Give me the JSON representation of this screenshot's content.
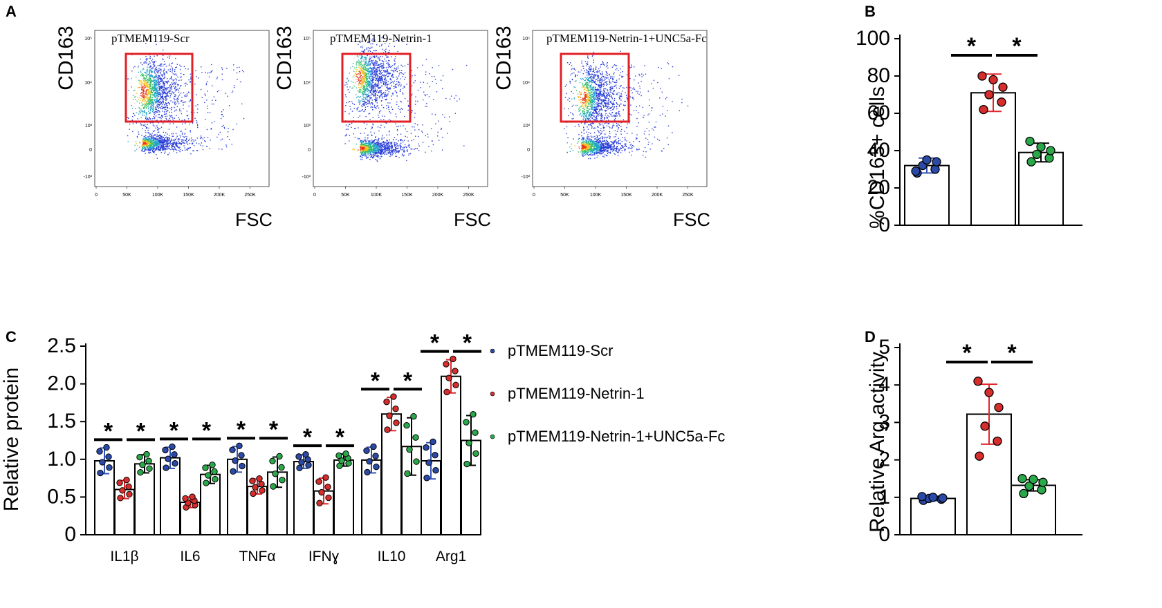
{
  "panels": {
    "A": "A",
    "B": "B",
    "C": "C",
    "D": "D"
  },
  "colors": {
    "scr": "#2b4aa8",
    "netrin": "#d62d2d",
    "unc": "#2aa84a",
    "errScr": "#3355bb",
    "errNetrin": "#e0262a",
    "gate": "#e11f26"
  },
  "chart_data": [
    {
      "panel": "A",
      "type": "scatter",
      "subtype": "flow-cytometry density plots",
      "xlabel": "FSC",
      "ylabel": "CD163",
      "x_ticks": [
        "0",
        "50K",
        "100K",
        "150K",
        "200K",
        "250K"
      ],
      "y_ticks": [
        "10⁵",
        "10⁴",
        "10³",
        "0",
        "-10³"
      ],
      "plots": [
        {
          "title": "pTMEM119-Scr"
        },
        {
          "title": "pTMEM119-Netrin-1"
        },
        {
          "title": "pTMEM119-Netrin-1+UNC5a-Fc"
        }
      ]
    },
    {
      "panel": "B",
      "type": "bar",
      "ylabel": "%CD163+ cells",
      "ylim": [
        0,
        100
      ],
      "yticks": [
        0,
        20,
        40,
        60,
        80,
        100
      ],
      "groups": [
        "pTMEM119-Scr",
        "pTMEM119-Netrin-1",
        "pTMEM119-Netrin-1+UNC5a-Fc"
      ],
      "means": [
        32,
        71,
        39
      ],
      "errors": [
        4,
        10,
        5
      ],
      "points": [
        [
          28,
          30,
          32,
          34,
          35,
          29
        ],
        [
          62,
          66,
          70,
          74,
          78,
          80
        ],
        [
          34,
          36,
          38,
          40,
          42,
          45
        ]
      ],
      "significance": [
        "*",
        "*"
      ]
    },
    {
      "panel": "C",
      "type": "bar",
      "ylabel": "Relative protein",
      "ylim": [
        0,
        2.5
      ],
      "yticks": [
        "0",
        "0.5",
        "1.0",
        "1.5",
        "2.0",
        "2.5"
      ],
      "categories": [
        "IL1β",
        "IL6",
        "TNFα",
        "IFNɣ",
        "IL10",
        "Arg1"
      ],
      "series": [
        {
          "name": "pTMEM119-Scr",
          "values": [
            0.98,
            1.02,
            1.0,
            0.97,
            0.99,
            0.98
          ],
          "errors": [
            0.17,
            0.14,
            0.17,
            0.09,
            0.17,
            0.24
          ]
        },
        {
          "name": "pTMEM119-Netrin-1",
          "values": [
            0.6,
            0.43,
            0.64,
            0.58,
            1.6,
            2.1
          ],
          "errors": [
            0.12,
            0.07,
            0.1,
            0.17,
            0.22,
            0.22
          ]
        },
        {
          "name": "pTMEM119-Netrin-1+UNC5a-Fc",
          "values": [
            0.94,
            0.8,
            0.83,
            0.99,
            1.17,
            1.25
          ],
          "errors": [
            0.12,
            0.12,
            0.2,
            0.08,
            0.38,
            0.33
          ]
        }
      ],
      "significance": [
        "*",
        "*"
      ]
    },
    {
      "panel": "D",
      "type": "bar",
      "ylabel": "Relative Arg activity",
      "ylim": [
        0,
        5
      ],
      "yticks": [
        0,
        1,
        2,
        3,
        4,
        5
      ],
      "groups": [
        "pTMEM119-Scr",
        "pTMEM119-Netrin-1",
        "pTMEM119-Netrin-1+UNC5a-Fc"
      ],
      "means": [
        0.97,
        3.22,
        1.32
      ],
      "errors": [
        0.06,
        0.8,
        0.15
      ],
      "points": [
        [
          0.92,
          0.95,
          0.97,
          0.98,
          1.0,
          1.02
        ],
        [
          2.1,
          2.5,
          2.9,
          3.4,
          3.8,
          4.1
        ],
        [
          1.1,
          1.2,
          1.3,
          1.4,
          1.48,
          1.5
        ]
      ],
      "significance": [
        "*",
        "*"
      ]
    }
  ],
  "legend": [
    "pTMEM119-Scr",
    "pTMEM119-Netrin-1",
    "pTMEM119-Netrin-1+UNC5a-Fc"
  ]
}
